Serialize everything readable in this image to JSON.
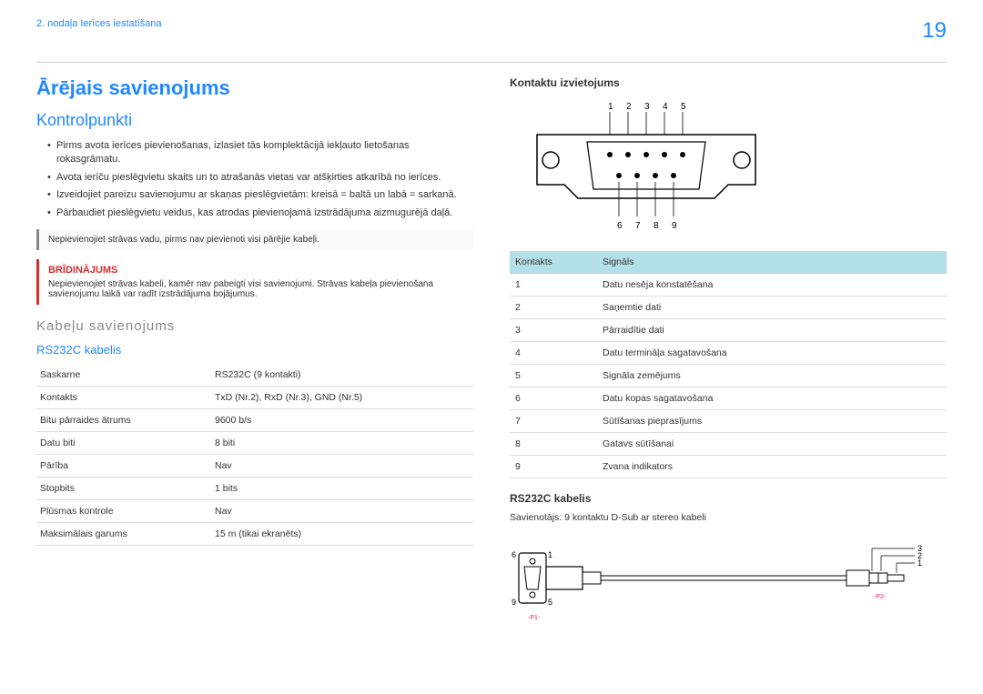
{
  "page": {
    "breadcrumb": "2. nodaļa Ierīces iestatīšana",
    "number": "19"
  },
  "h1": "Ārējais savienojums",
  "h2_control": "Kontrolpunkti",
  "bullets": [
    "Pirms avota ierīces pievienošanas, izlasiet tās komplektācijā iekļauto lietošanas rokasgrāmatu.",
    "Avota ierīču pieslēgvietu skaits un to atrašanās vietas var atšķirties atkarībā no ierīces.",
    "Izveidojiet pareizu savienojumu ar skaņas pieslēgvietām: kreisā = baltā un labā = sarkanā.",
    "Pārbaudiet pieslēgvietu veidus, kas atrodas pievienojamā izstrādājuma aizmugurējā daļā."
  ],
  "info_text": "Nepievienojiet strāvas vadu, pirms nav pievienoti visi pārējie kabeļi.",
  "warning": {
    "title": "BRĪDINĀJUMS",
    "text": "Nepievienojiet strāvas kabeli, kamēr nav pabeigti visi savienojumi. Strāvas kabeļa pievienošana savienojumu laikā var radīt izstrādājuma bojājumus."
  },
  "section_mid": "Kabeļu savienojums",
  "h3_cable": "RS232C kabelis",
  "spec_rows": [
    [
      "Saskarne",
      "RS232C (9 kontakti)"
    ],
    [
      "Kontakts",
      "TxD (Nr.2), RxD (Nr.3), GND (Nr.5)"
    ],
    [
      "Bitu pārraides ātrums",
      "9600 b/s"
    ],
    [
      "Datu biti",
      "8 biti"
    ],
    [
      "Pārība",
      "Nav"
    ],
    [
      "Stopbits",
      "1 bits"
    ],
    [
      "Plūsmas kontrole",
      "Nav"
    ],
    [
      "Maksimālais garums",
      "15 m (tikai ekranēts)"
    ]
  ],
  "h4_pins": "Kontaktu izvietojums",
  "pin_header": [
    "Kontakts",
    "Signāls"
  ],
  "pin_rows": [
    [
      "1",
      "Datu nesēja konstatēšana"
    ],
    [
      "2",
      "Saņemtie dati"
    ],
    [
      "3",
      "Pārraidītie dati"
    ],
    [
      "4",
      "Datu termināļa sagatavošana"
    ],
    [
      "5",
      "Signāla zemējums"
    ],
    [
      "6",
      "Datu kopas sagatavošana"
    ],
    [
      "7",
      "Sūtīšanas pieprasījums"
    ],
    [
      "8",
      "Gatavs sūtīšanai"
    ],
    [
      "9",
      "Zvana indikators"
    ]
  ],
  "h4_cable2": "RS232C kabelis",
  "cable_note": "Savienotājs: 9 kontaktu D-Sub ar stereo kabeli",
  "diagram": {
    "top_labels": [
      "1",
      "2",
      "3",
      "4",
      "5"
    ],
    "bottom_labels": [
      "6",
      "7",
      "8",
      "9"
    ],
    "stroke": "#000",
    "fill": "#fff"
  },
  "cable_diagram": {
    "labels_left": [
      "6",
      "1",
      "9",
      "5"
    ],
    "labels_right": [
      "3",
      "2",
      "1"
    ],
    "p1": "-P1-",
    "p2": "-P2-",
    "p_color": "#e91e63"
  }
}
